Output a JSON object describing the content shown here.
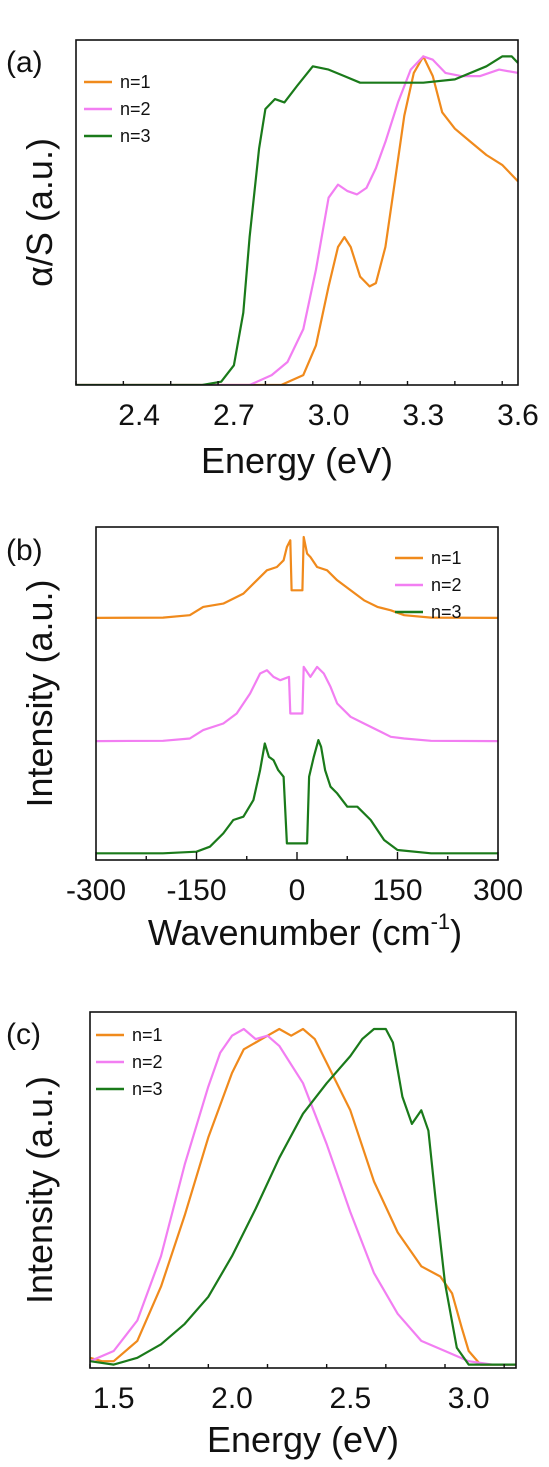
{
  "chart_data": [
    {
      "panel": "(a)",
      "type": "line",
      "xlabel": "Energy (eV)",
      "ylabel": "α/S (a.u.)",
      "xlim": [
        2.2,
        3.6
      ],
      "ylim": [
        0,
        1.05
      ],
      "x_ticks": [
        "2.4",
        "2.7",
        "3.0",
        "3.3",
        "3.6"
      ],
      "x_tick_values": [
        2.4,
        2.7,
        3.0,
        3.3,
        3.6
      ],
      "grid": false,
      "legend_position": "top-left",
      "series": [
        {
          "name": "n=1",
          "color": "#f08a1c",
          "x": [
            2.2,
            2.85,
            2.92,
            2.96,
            3.0,
            3.03,
            3.05,
            3.07,
            3.1,
            3.13,
            3.15,
            3.18,
            3.21,
            3.24,
            3.27,
            3.3,
            3.33,
            3.36,
            3.4,
            3.45,
            3.5,
            3.55,
            3.6
          ],
          "y": [
            0.0,
            0.0,
            0.03,
            0.12,
            0.3,
            0.42,
            0.45,
            0.42,
            0.33,
            0.3,
            0.31,
            0.42,
            0.62,
            0.82,
            0.95,
            1.0,
            0.94,
            0.83,
            0.78,
            0.74,
            0.7,
            0.67,
            0.62
          ]
        },
        {
          "name": "n=2",
          "color": "#f27ef2",
          "x": [
            2.2,
            2.75,
            2.82,
            2.87,
            2.92,
            2.96,
            3.0,
            3.03,
            3.06,
            3.09,
            3.12,
            3.15,
            3.18,
            3.22,
            3.26,
            3.3,
            3.33,
            3.37,
            3.42,
            3.48,
            3.54,
            3.6
          ],
          "y": [
            0.0,
            0.0,
            0.03,
            0.07,
            0.17,
            0.35,
            0.57,
            0.61,
            0.59,
            0.58,
            0.6,
            0.66,
            0.74,
            0.86,
            0.96,
            1.0,
            0.99,
            0.95,
            0.94,
            0.94,
            0.96,
            0.95
          ]
        },
        {
          "name": "n=3",
          "color": "#1a7a1a",
          "x": [
            2.2,
            2.6,
            2.66,
            2.7,
            2.73,
            2.75,
            2.78,
            2.8,
            2.83,
            2.86,
            2.9,
            2.95,
            3.0,
            3.05,
            3.1,
            3.15,
            3.2,
            3.3,
            3.4,
            3.5,
            3.55,
            3.58,
            3.6
          ],
          "y": [
            0.0,
            0.0,
            0.01,
            0.06,
            0.22,
            0.45,
            0.72,
            0.84,
            0.87,
            0.86,
            0.91,
            0.97,
            0.96,
            0.94,
            0.92,
            0.92,
            0.92,
            0.92,
            0.93,
            0.97,
            1.0,
            1.0,
            0.98
          ]
        }
      ]
    },
    {
      "panel": "(b)",
      "type": "line",
      "xlabel": "Wavenumber (cm",
      "xlabel_sup": "-1",
      "xlabel_end": ")",
      "ylabel": "Intensity (a.u.)",
      "xlim": [
        -300,
        300
      ],
      "ylim": [
        0,
        1
      ],
      "x_ticks": [
        "-300",
        "-150",
        "0",
        "150",
        "300"
      ],
      "x_tick_values": [
        -300,
        -150,
        0,
        150,
        300
      ],
      "grid": false,
      "legend_position": "top-right",
      "series": [
        {
          "name": "n=1",
          "color": "#f08a1c",
          "x": [
            -300,
            -200,
            -160,
            -140,
            -110,
            -80,
            -60,
            -45,
            -30,
            -20,
            -15,
            -10,
            -8,
            -5,
            5,
            8,
            10,
            15,
            20,
            30,
            45,
            60,
            80,
            100,
            120,
            140,
            160,
            200,
            300
          ],
          "y": [
            0.727,
            0.728,
            0.735,
            0.76,
            0.77,
            0.8,
            0.84,
            0.87,
            0.88,
            0.9,
            0.94,
            0.96,
            0.81,
            0.81,
            0.81,
            0.81,
            0.97,
            0.92,
            0.91,
            0.88,
            0.87,
            0.84,
            0.81,
            0.78,
            0.76,
            0.75,
            0.735,
            0.728,
            0.727
          ]
        },
        {
          "name": "n=2",
          "color": "#f27ef2",
          "x": [
            -300,
            -200,
            -160,
            -140,
            -110,
            -90,
            -70,
            -55,
            -45,
            -35,
            -25,
            -12,
            -10,
            0,
            8,
            10,
            20,
            30,
            40,
            50,
            60,
            80,
            100,
            120,
            140,
            160,
            200,
            300
          ],
          "y": [
            0.357,
            0.358,
            0.365,
            0.39,
            0.41,
            0.44,
            0.5,
            0.56,
            0.57,
            0.55,
            0.54,
            0.55,
            0.44,
            0.44,
            0.44,
            0.58,
            0.55,
            0.58,
            0.56,
            0.52,
            0.47,
            0.43,
            0.41,
            0.39,
            0.37,
            0.365,
            0.358,
            0.357
          ]
        },
        {
          "name": "n=3",
          "color": "#1a7a1a",
          "x": [
            -300,
            -200,
            -150,
            -130,
            -110,
            -95,
            -80,
            -65,
            -55,
            -48,
            -42,
            -35,
            -28,
            -20,
            -15,
            15,
            18,
            25,
            32,
            36,
            42,
            50,
            60,
            75,
            90,
            110,
            130,
            150,
            200,
            300
          ],
          "y": [
            0.02,
            0.02,
            0.025,
            0.04,
            0.08,
            0.12,
            0.13,
            0.18,
            0.27,
            0.35,
            0.31,
            0.3,
            0.27,
            0.25,
            0.05,
            0.05,
            0.25,
            0.31,
            0.36,
            0.34,
            0.27,
            0.22,
            0.2,
            0.16,
            0.16,
            0.12,
            0.06,
            0.03,
            0.02,
            0.02
          ]
        }
      ]
    },
    {
      "panel": "(c)",
      "type": "line",
      "xlabel": "Energy (eV)",
      "ylabel": "Intensity (a.u.)",
      "xlim": [
        1.4,
        3.2
      ],
      "ylim": [
        0,
        1.05
      ],
      "x_ticks": [
        "1.5",
        "2.0",
        "2.5",
        "3.0"
      ],
      "x_tick_values": [
        1.5,
        2.0,
        2.5,
        3.0
      ],
      "grid": false,
      "legend_position": "top-left",
      "series": [
        {
          "name": "n=1",
          "color": "#f08a1c",
          "x": [
            1.4,
            1.45,
            1.5,
            1.6,
            1.7,
            1.8,
            1.9,
            2.0,
            2.05,
            2.1,
            2.15,
            2.2,
            2.25,
            2.3,
            2.35,
            2.4,
            2.5,
            2.6,
            2.7,
            2.8,
            2.88,
            2.93,
            2.97,
            3.0,
            3.05,
            3.2
          ],
          "y": [
            0.03,
            0.02,
            0.02,
            0.08,
            0.24,
            0.45,
            0.68,
            0.87,
            0.94,
            0.96,
            0.98,
            1.0,
            0.98,
            1.0,
            0.97,
            0.9,
            0.76,
            0.55,
            0.4,
            0.3,
            0.27,
            0.22,
            0.12,
            0.05,
            0.01,
            0.01
          ]
        },
        {
          "name": "n=2",
          "color": "#f27ef2",
          "x": [
            1.4,
            1.5,
            1.6,
            1.7,
            1.8,
            1.9,
            1.95,
            2.0,
            2.05,
            2.1,
            2.15,
            2.2,
            2.3,
            2.4,
            2.5,
            2.6,
            2.7,
            2.8,
            2.9,
            3.0,
            3.1,
            3.2
          ],
          "y": [
            0.02,
            0.05,
            0.14,
            0.33,
            0.6,
            0.83,
            0.93,
            0.98,
            1.0,
            0.97,
            0.98,
            0.95,
            0.84,
            0.66,
            0.46,
            0.28,
            0.16,
            0.08,
            0.05,
            0.02,
            0.01,
            0.01
          ]
        },
        {
          "name": "n=3",
          "color": "#1a7a1a",
          "x": [
            1.4,
            1.5,
            1.6,
            1.7,
            1.8,
            1.9,
            2.0,
            2.1,
            2.2,
            2.3,
            2.4,
            2.5,
            2.55,
            2.6,
            2.65,
            2.68,
            2.72,
            2.76,
            2.8,
            2.83,
            2.86,
            2.9,
            2.95,
            3.0,
            3.2
          ],
          "y": [
            0.02,
            0.01,
            0.03,
            0.07,
            0.13,
            0.21,
            0.33,
            0.47,
            0.62,
            0.75,
            0.84,
            0.92,
            0.97,
            1.0,
            1.0,
            0.96,
            0.8,
            0.72,
            0.76,
            0.7,
            0.5,
            0.25,
            0.06,
            0.01,
            0.01
          ]
        }
      ]
    }
  ]
}
